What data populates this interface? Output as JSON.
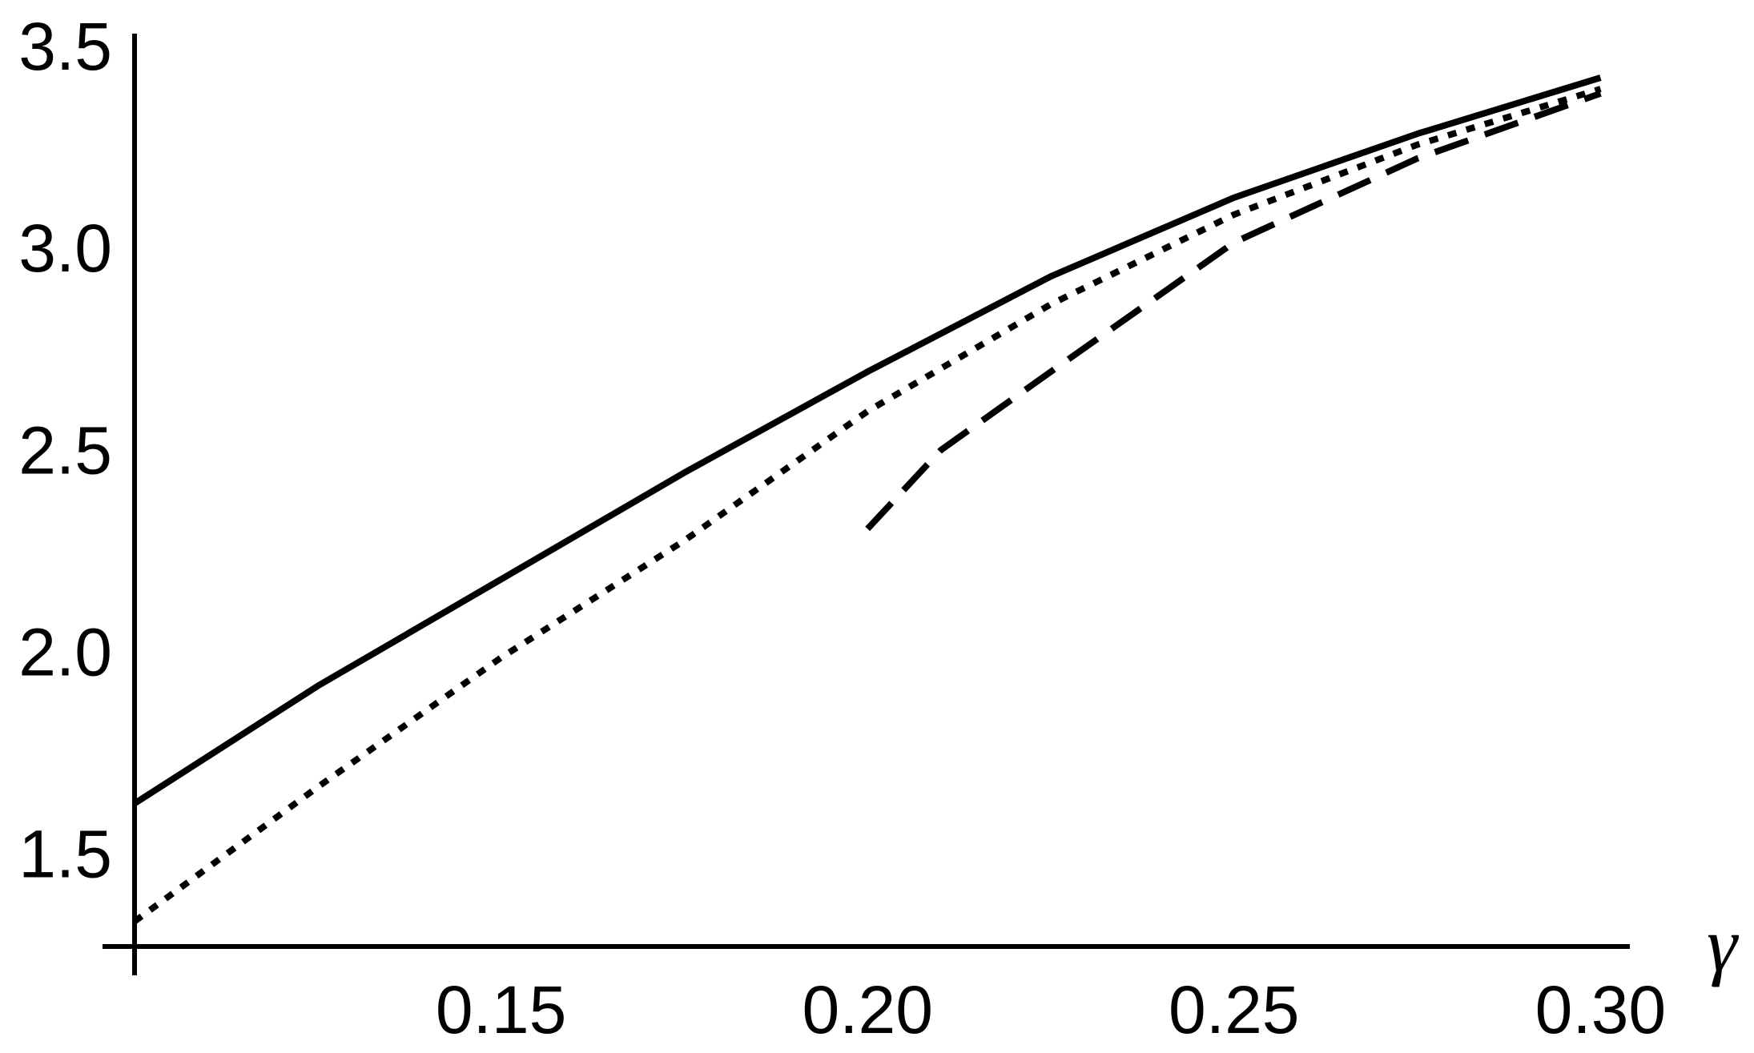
{
  "chart_data": {
    "type": "line",
    "x_label": "γ",
    "xlim": [
      0.1,
      0.304
    ],
    "ylim": [
      1.285,
      3.545
    ],
    "xticks": [
      0.15,
      {
        "value": 0.2,
        "label": "0.20"
      },
      0.25,
      {
        "value": 0.3,
        "label": "0.30"
      }
    ],
    "yticks": [
      1.5,
      {
        "value": 2.0,
        "label": "2.0"
      },
      2.5,
      {
        "value": 3.0,
        "label": "3.0"
      },
      3.5
    ],
    "series": [
      {
        "style": "solid",
        "color": "#000000",
        "x": [
          0.1,
          0.125,
          0.15,
          0.175,
          0.2,
          0.225,
          0.25,
          0.275,
          0.3
        ],
        "values": [
          1.639,
          1.93,
          2.194,
          2.458,
          2.708,
          2.944,
          3.139,
          3.297,
          3.436
        ]
      },
      {
        "style": "dotted",
        "color": "#000000",
        "x": [
          0.1,
          0.125,
          0.15,
          0.175,
          0.2,
          0.225,
          0.25,
          0.275,
          0.3
        ],
        "values": [
          1.347,
          1.68,
          2.0,
          2.29,
          2.61,
          2.875,
          3.097,
          3.27,
          3.408
        ]
      },
      {
        "style": "dashed",
        "color": "#000000",
        "x": [
          0.2,
          0.21,
          0.225,
          0.25,
          0.275,
          0.3
        ],
        "values": [
          2.319,
          2.514,
          2.708,
          3.028,
          3.236,
          3.397
        ]
      }
    ]
  }
}
